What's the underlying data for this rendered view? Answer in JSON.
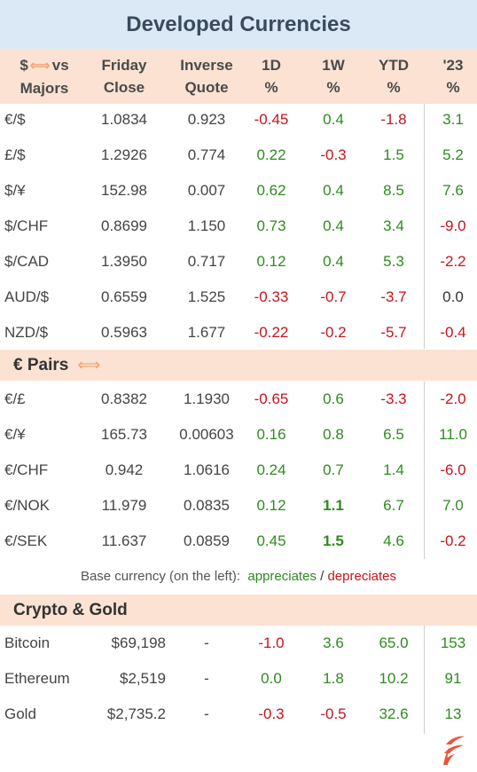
{
  "title": "Developed Currencies",
  "headers": {
    "col0_line1": "$",
    "col0_arrow": "⟺",
    "col0_line1b": "vs",
    "col0_line2": "Majors",
    "col1_line1": "Friday",
    "col1_line2": "Close",
    "col2_line1": "Inverse",
    "col2_line2": "Quote",
    "col3_line1": "1D",
    "col3_line2": "%",
    "col4_line1": "1W",
    "col4_line2": "%",
    "col5_line1": "YTD",
    "col5_line2": "%",
    "col6_line1": "'23",
    "col6_line2": "%"
  },
  "majors": [
    {
      "pair": "€/$",
      "close": "1.0834",
      "inverse": "0.923",
      "d1": "-0.45",
      "w1": "0.4",
      "ytd": "-1.8",
      "y23": "3.1"
    },
    {
      "pair": "£/$",
      "close": "1.2926",
      "inverse": "0.774",
      "d1": "0.22",
      "w1": "-0.3",
      "ytd": "1.5",
      "y23": "5.2"
    },
    {
      "pair": "$/¥",
      "close": "152.98",
      "inverse": "0.007",
      "d1": "0.62",
      "w1": "0.4",
      "ytd": "8.5",
      "y23": "7.6"
    },
    {
      "pair": "$/CHF",
      "close": "0.8699",
      "inverse": "1.150",
      "d1": "0.73",
      "w1": "0.4",
      "ytd": "3.4",
      "y23": "-9.0"
    },
    {
      "pair": "$/CAD",
      "close": "1.3950",
      "inverse": "0.717",
      "d1": "0.12",
      "w1": "0.4",
      "ytd": "5.3",
      "y23": "-2.2"
    },
    {
      "pair": "AUD/$",
      "close": "0.6559",
      "inverse": "1.525",
      "d1": "-0.33",
      "w1": "-0.7",
      "ytd": "-3.7",
      "y23": "0.0"
    },
    {
      "pair": "NZD/$",
      "close": "0.5963",
      "inverse": "1.677",
      "d1": "-0.22",
      "w1": "-0.2",
      "ytd": "-5.7",
      "y23": "-0.4"
    }
  ],
  "euro_section": {
    "label": "€ Pairs",
    "arrow": "⟺"
  },
  "euro_pairs": [
    {
      "pair": "€/£",
      "close": "0.8382",
      "inverse": "1.1930",
      "d1": "-0.65",
      "w1": "0.6",
      "ytd": "-3.3",
      "y23": "-2.0"
    },
    {
      "pair": "€/¥",
      "close": "165.73",
      "inverse": "0.00603",
      "d1": "0.16",
      "w1": "0.8",
      "ytd": "6.5",
      "y23": "11.0"
    },
    {
      "pair": "€/CHF",
      "close": "0.942",
      "inverse": "1.0616",
      "d1": "0.24",
      "w1": "0.7",
      "ytd": "1.4",
      "y23": "-6.0"
    },
    {
      "pair": "€/NOK",
      "close": "11.979",
      "inverse": "0.0835",
      "d1": "0.12",
      "w1": "1.1",
      "ytd": "6.7",
      "y23": "7.0"
    },
    {
      "pair": "€/SEK",
      "close": "11.637",
      "inverse": "0.0859",
      "d1": "0.45",
      "w1": "1.5",
      "ytd": "4.6",
      "y23": "-0.2"
    }
  ],
  "legend": {
    "prefix": "Base currency (on the left):",
    "appreciates": "appreciates",
    "separator": "/",
    "depreciates": "depreciates"
  },
  "crypto_section": {
    "label": "Crypto & Gold"
  },
  "crypto": [
    {
      "name": "Bitcoin",
      "close": "$69,198",
      "inverse": "-",
      "d1": "-1.0",
      "w1": "3.6",
      "ytd": "65.0",
      "y23": "153"
    },
    {
      "name": "Ethereum",
      "close": "$2,519",
      "inverse": "-",
      "d1": "0.0",
      "w1": "1.8",
      "ytd": "10.2",
      "y23": "91"
    },
    {
      "name": "Gold",
      "close": "$2,735.2",
      "inverse": "-",
      "d1": "-0.3",
      "w1": "-0.5",
      "ytd": "32.6",
      "y23": "13"
    }
  ],
  "colors": {
    "positive": "#2e8b1f",
    "negative": "#c7141b",
    "title_bg": "#dbe9f6",
    "header_bg": "#fbe2d3",
    "arrow": "#f0a070",
    "logo": "#e8563a"
  },
  "logo_icon": "flame-logo-icon"
}
